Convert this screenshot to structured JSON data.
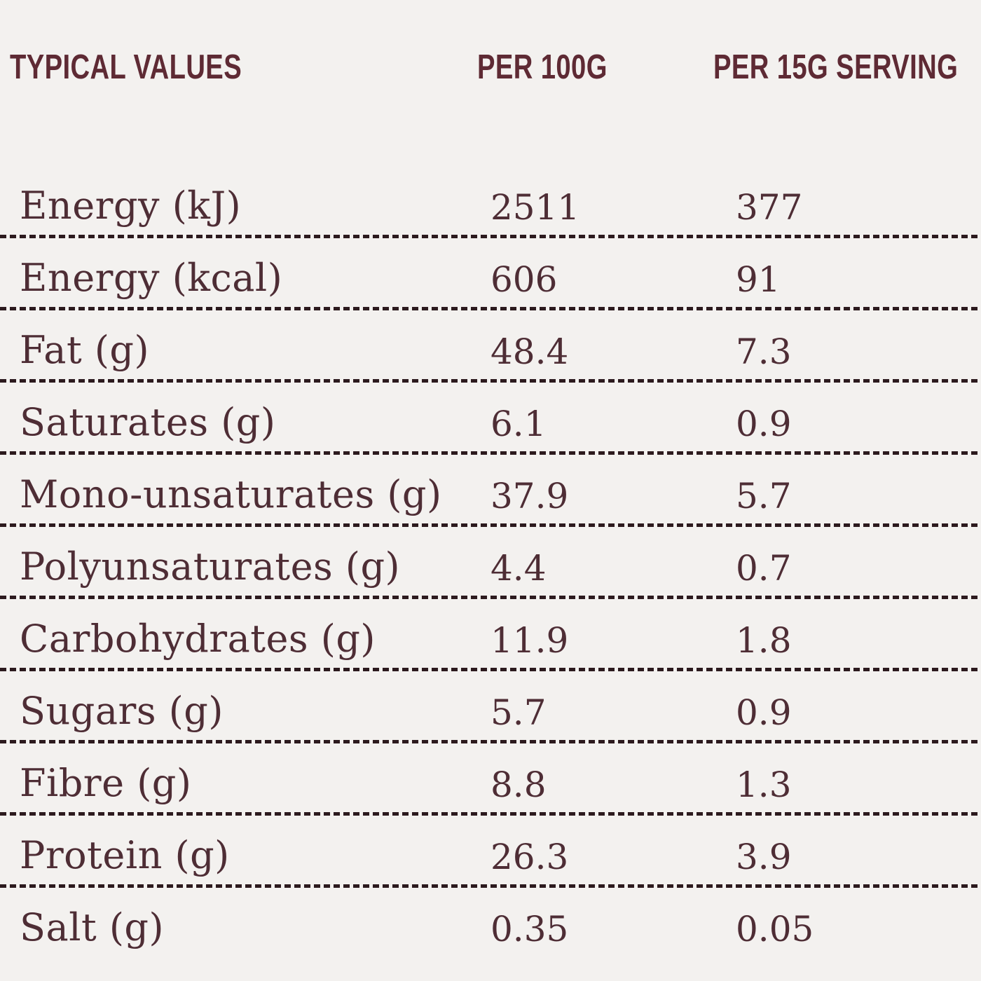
{
  "table": {
    "headers": {
      "col_label": "TYPICAL VALUES",
      "col_per100": "PER 100G",
      "col_serving": "PER 15G SERVING"
    },
    "rows": [
      {
        "label": "Energy (kJ)",
        "per_100g": "2511",
        "per_15g": "377"
      },
      {
        "label": "Energy (kcal)",
        "per_100g": "606",
        "per_15g": "91"
      },
      {
        "label": "Fat (g)",
        "per_100g": "48.4",
        "per_15g": "7.3"
      },
      {
        "label": "Saturates (g)",
        "per_100g": "6.1",
        "per_15g": "0.9"
      },
      {
        "label": "Mono-unsaturates (g)",
        "per_100g": "37.9",
        "per_15g": "5.7"
      },
      {
        "label": "Polyunsaturates (g)",
        "per_100g": "4.4",
        "per_15g": "0.7"
      },
      {
        "label": "Carbohydrates (g)",
        "per_100g": "11.9",
        "per_15g": "1.8"
      },
      {
        "label": "Sugars (g)",
        "per_100g": "5.7",
        "per_15g": "0.9"
      },
      {
        "label": "Fibre (g)",
        "per_100g": "8.8",
        "per_15g": "1.3"
      },
      {
        "label": "Protein (g)",
        "per_100g": "26.3",
        "per_15g": "3.9"
      },
      {
        "label": "Salt (g)",
        "per_100g": "0.35",
        "per_15g": "0.05"
      }
    ]
  },
  "colors": {
    "background": "#f3f1ef",
    "header_text": "#5e2a34",
    "body_text": "#4e2d35",
    "divider_dashes": "#2c1a1e"
  }
}
